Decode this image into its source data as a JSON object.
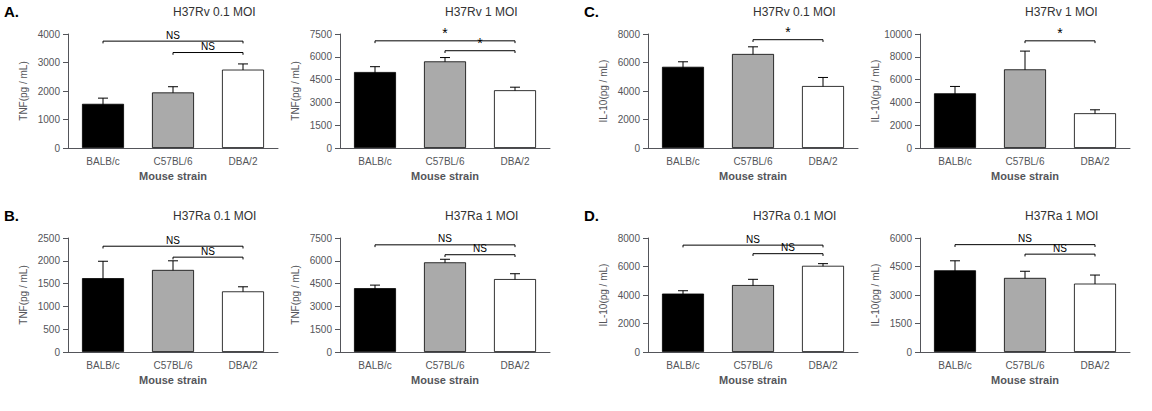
{
  "chart_data": [
    {
      "type": "bar",
      "panel_label": "A.",
      "title": "H37Rv 0.1 MOI",
      "xlabel": "Mouse strain",
      "ylabel": "TNF(pg / mL)",
      "categories": [
        "BALB/c",
        "C57BL/6",
        "DBA/2"
      ],
      "values": [
        1550,
        1950,
        2750
      ],
      "errors": [
        200,
        200,
        200
      ],
      "colors": [
        "black",
        "#aaaaaa",
        "white"
      ],
      "ylim": [
        0,
        4000
      ],
      "yticks": [
        0,
        1000,
        2000,
        3000,
        4000
      ],
      "grid": false,
      "significance": [
        {
          "between": [
            "BALB/c",
            "DBA/2"
          ],
          "y": 3750,
          "label": "NS"
        },
        {
          "between": [
            "C57BL/6",
            "DBA/2"
          ],
          "y": 3350,
          "label": "NS"
        }
      ]
    },
    {
      "type": "bar",
      "title": "H37Rv 1 MOI",
      "xlabel": "Mouse strain",
      "ylabel": "TNF(pg / mL)",
      "categories": [
        "BALB/c",
        "C57BL/6",
        "DBA/2"
      ],
      "values": [
        5000,
        5700,
        3800
      ],
      "errors": [
        350,
        250,
        200
      ],
      "colors": [
        "black",
        "#aaaaaa",
        "white"
      ],
      "ylim": [
        0,
        7500
      ],
      "yticks": [
        0,
        1500,
        3000,
        4500,
        6000,
        7500
      ],
      "grid": false,
      "significance": [
        {
          "between": [
            "BALB/c",
            "DBA/2"
          ],
          "y": 7050,
          "label": "*"
        },
        {
          "between": [
            "C57BL/6",
            "DBA/2"
          ],
          "y": 6400,
          "label": "*"
        }
      ]
    },
    {
      "type": "bar",
      "panel_label": "B.",
      "title": "H37Ra 0.1 MOI",
      "xlabel": "Mouse strain",
      "ylabel": "TNF(pg / mL)",
      "categories": [
        "BALB/c",
        "C57BL/6",
        "DBA/2"
      ],
      "values": [
        1620,
        1800,
        1330
      ],
      "errors": [
        370,
        200,
        100
      ],
      "colors": [
        "black",
        "#aaaaaa",
        "white"
      ],
      "ylim": [
        0,
        2500
      ],
      "yticks": [
        0,
        500,
        1000,
        1500,
        2000,
        2500
      ],
      "grid": false,
      "significance": [
        {
          "between": [
            "BALB/c",
            "DBA/2"
          ],
          "y": 2320,
          "label": "NS"
        },
        {
          "between": [
            "C57BL/6",
            "DBA/2"
          ],
          "y": 2080,
          "label": "NS"
        }
      ]
    },
    {
      "type": "bar",
      "title": "H37Ra 1 MOI",
      "xlabel": "Mouse strain",
      "ylabel": "TNF(pg / mL)",
      "categories": [
        "BALB/c",
        "C57BL/6",
        "DBA/2"
      ],
      "values": [
        4200,
        5900,
        4800
      ],
      "errors": [
        200,
        200,
        350
      ],
      "colors": [
        "black",
        "#aaaaaa",
        "white"
      ],
      "ylim": [
        0,
        7500
      ],
      "yticks": [
        0,
        1500,
        3000,
        4500,
        6000,
        7500
      ],
      "grid": false,
      "significance": [
        {
          "between": [
            "BALB/c",
            "DBA/2"
          ],
          "y": 7050,
          "label": "NS"
        },
        {
          "between": [
            "C57BL/6",
            "DBA/2"
          ],
          "y": 6400,
          "label": "NS"
        }
      ]
    },
    {
      "type": "bar",
      "panel_label": "C.",
      "title": "H37Rv 0.1 MOI",
      "xlabel": "Mouse strain",
      "ylabel": "IL-10(pg / mL)",
      "categories": [
        "BALB/c",
        "C57BL/6",
        "DBA/2"
      ],
      "values": [
        5700,
        6600,
        4350
      ],
      "errors": [
        350,
        500,
        600
      ],
      "colors": [
        "black",
        "#aaaaaa",
        "white"
      ],
      "ylim": [
        0,
        8000
      ],
      "yticks": [
        0,
        2000,
        4000,
        6000,
        8000
      ],
      "grid": false,
      "significance": [
        {
          "between": [
            "C57BL/6",
            "DBA/2"
          ],
          "y": 7600,
          "label": "*"
        }
      ]
    },
    {
      "type": "bar",
      "title": "H37Rv 1 MOI",
      "xlabel": "Mouse strain",
      "ylabel": "IL-10(pg / mL)",
      "categories": [
        "BALB/c",
        "C57BL/6",
        "DBA/2"
      ],
      "values": [
        4800,
        6900,
        3050
      ],
      "errors": [
        600,
        1600,
        300
      ],
      "colors": [
        "black",
        "#aaaaaa",
        "white"
      ],
      "ylim": [
        0,
        10000
      ],
      "yticks": [
        0,
        2000,
        4000,
        6000,
        8000,
        10000
      ],
      "grid": false,
      "significance": [
        {
          "between": [
            "C57BL/6",
            "DBA/2"
          ],
          "y": 9400,
          "label": "*"
        }
      ]
    },
    {
      "type": "bar",
      "panel_label": "D.",
      "title": "H37Ra 0.1 MOI",
      "xlabel": "Mouse strain",
      "ylabel": "IL-10(pg / mL)",
      "categories": [
        "BALB/c",
        "C57BL/6",
        "DBA/2"
      ],
      "values": [
        4100,
        4700,
        6050
      ],
      "errors": [
        200,
        400,
        150
      ],
      "colors": [
        "black",
        "#aaaaaa",
        "white"
      ],
      "ylim": [
        0,
        8000
      ],
      "yticks": [
        0,
        2000,
        4000,
        6000,
        8000
      ],
      "grid": false,
      "significance": [
        {
          "between": [
            "BALB/c",
            "DBA/2"
          ],
          "y": 7500,
          "label": "NS"
        },
        {
          "between": [
            "C57BL/6",
            "DBA/2"
          ],
          "y": 6900,
          "label": "NS"
        }
      ]
    },
    {
      "type": "bar",
      "title": "H37Ra 1 MOI",
      "xlabel": "Mouse strain",
      "ylabel": "IL-10(pg / mL)",
      "categories": [
        "BALB/c",
        "C57BL/6",
        "DBA/2"
      ],
      "values": [
        4300,
        3900,
        3600
      ],
      "errors": [
        500,
        350,
        450
      ],
      "colors": [
        "black",
        "#aaaaaa",
        "white"
      ],
      "ylim": [
        0,
        6000
      ],
      "yticks": [
        0,
        1500,
        3000,
        4500,
        6000
      ],
      "grid": false,
      "significance": [
        {
          "between": [
            "BALB/c",
            "DBA/2"
          ],
          "y": 5650,
          "label": "NS"
        },
        {
          "between": [
            "C57BL/6",
            "DBA/2"
          ],
          "y": 5150,
          "label": "NS"
        }
      ]
    }
  ]
}
